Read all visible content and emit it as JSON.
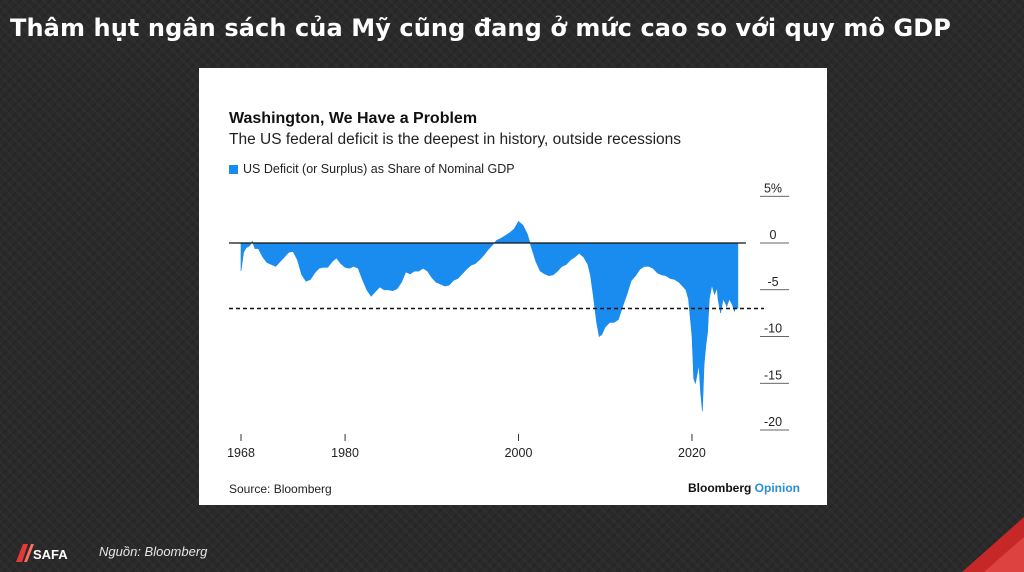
{
  "slide": {
    "title": "Thâm hụt ngân sách của Mỹ cũng đang ở mức cao so với quy mô GDP",
    "footnote": "Nguồn: Bloomberg",
    "logo_text": "SAFA"
  },
  "card": {
    "source": "Source: Bloomberg",
    "brand_main": "Bloomberg",
    "brand_accent": "Opinion"
  },
  "chart_data": {
    "type": "area",
    "title": "Washington, We Have a Problem",
    "subtitle": "The US federal deficit is the deepest in history, outside recessions",
    "series": [
      {
        "name": "US Deficit (or Surplus) as Share of Nominal GDP",
        "color": "#1a8cf0",
        "x": [
          1968.0,
          1968.3,
          1968.6,
          1969.0,
          1969.3,
          1969.6,
          1970.0,
          1970.5,
          1971.0,
          1971.5,
          1972.0,
          1972.5,
          1973.0,
          1973.5,
          1974.0,
          1974.5,
          1975.0,
          1975.5,
          1976.0,
          1976.5,
          1977.0,
          1977.5,
          1978.0,
          1978.5,
          1979.0,
          1979.5,
          1980.0,
          1980.5,
          1981.0,
          1981.5,
          1982.0,
          1982.5,
          1983.0,
          1983.5,
          1984.0,
          1984.5,
          1985.0,
          1985.5,
          1986.0,
          1986.5,
          1987.0,
          1987.5,
          1988.0,
          1988.5,
          1989.0,
          1989.5,
          1990.0,
          1990.5,
          1991.0,
          1991.5,
          1992.0,
          1992.5,
          1993.0,
          1993.5,
          1994.0,
          1994.5,
          1995.0,
          1995.5,
          1996.0,
          1996.5,
          1997.0,
          1997.5,
          1998.0,
          1998.5,
          1999.0,
          1999.5,
          2000.0,
          2000.5,
          2001.0,
          2001.5,
          2002.0,
          2002.5,
          2003.0,
          2003.5,
          2004.0,
          2004.5,
          2005.0,
          2005.5,
          2006.0,
          2006.5,
          2007.0,
          2007.5,
          2008.0,
          2008.3,
          2008.6,
          2009.0,
          2009.3,
          2009.6,
          2010.0,
          2010.5,
          2011.0,
          2011.5,
          2012.0,
          2012.5,
          2013.0,
          2013.5,
          2014.0,
          2014.5,
          2015.0,
          2015.5,
          2016.0,
          2016.5,
          2017.0,
          2017.5,
          2018.0,
          2018.5,
          2019.0,
          2019.3,
          2019.6,
          2020.0,
          2020.2,
          2020.4,
          2020.6,
          2020.8,
          2021.0,
          2021.2,
          2021.4,
          2021.6,
          2021.8,
          2022.0,
          2022.3,
          2022.6,
          2022.9,
          2023.0,
          2023.3,
          2023.6,
          2023.9,
          2024.0,
          2024.3,
          2024.6,
          2024.9,
          2025.0,
          2025.3
        ],
        "values": [
          -3.0,
          -1.0,
          -0.5,
          -0.3,
          0.2,
          -0.6,
          -0.6,
          -1.5,
          -2.1,
          -2.3,
          -2.5,
          -2.0,
          -1.5,
          -1.0,
          -0.9,
          -1.8,
          -3.4,
          -4.1,
          -3.9,
          -3.2,
          -2.7,
          -2.6,
          -2.6,
          -2.0,
          -1.6,
          -2.2,
          -2.6,
          -2.7,
          -2.5,
          -2.7,
          -3.9,
          -5.0,
          -5.7,
          -5.2,
          -4.7,
          -5.0,
          -5.0,
          -5.1,
          -4.9,
          -4.2,
          -3.1,
          -3.3,
          -3.0,
          -3.0,
          -2.7,
          -3.0,
          -3.7,
          -4.2,
          -4.4,
          -4.6,
          -4.5,
          -4.0,
          -3.8,
          -3.3,
          -2.8,
          -2.4,
          -2.2,
          -1.8,
          -1.3,
          -0.7,
          -0.2,
          0.3,
          0.5,
          0.8,
          1.1,
          1.5,
          2.3,
          1.9,
          1.0,
          -0.5,
          -2.0,
          -3.0,
          -3.3,
          -3.5,
          -3.4,
          -3.0,
          -2.5,
          -2.3,
          -1.8,
          -1.5,
          -1.1,
          -1.5,
          -2.3,
          -3.5,
          -5.5,
          -8.5,
          -10.0,
          -9.8,
          -9.0,
          -8.5,
          -8.5,
          -8.2,
          -6.8,
          -5.5,
          -4.0,
          -3.5,
          -2.8,
          -2.5,
          -2.5,
          -2.7,
          -3.2,
          -3.4,
          -3.5,
          -3.8,
          -3.9,
          -4.2,
          -4.7,
          -5.0,
          -6.0,
          -10.0,
          -14.5,
          -15.0,
          -14.0,
          -13.0,
          -16.0,
          -18.0,
          -13.0,
          -11.0,
          -9.5,
          -6.0,
          -4.5,
          -5.5,
          -4.8,
          -6.0,
          -7.5,
          -6.0,
          -6.5,
          -6.8,
          -6.0,
          -6.5,
          -7.3,
          -7.0,
          -7.0
        ],
        "dashed_reference": -7.0
      }
    ],
    "xticks": [
      1968,
      1980,
      2000,
      2020
    ],
    "yticks": [
      5,
      0,
      -5,
      -10,
      -15,
      -20
    ],
    "ytick_labels": [
      "5%",
      "0",
      "-5",
      "-10",
      "-15",
      "-20"
    ],
    "xlim": [
      1968,
      2026
    ],
    "ylim": [
      -21,
      6
    ],
    "legend_position": "top-left",
    "grid": false
  }
}
